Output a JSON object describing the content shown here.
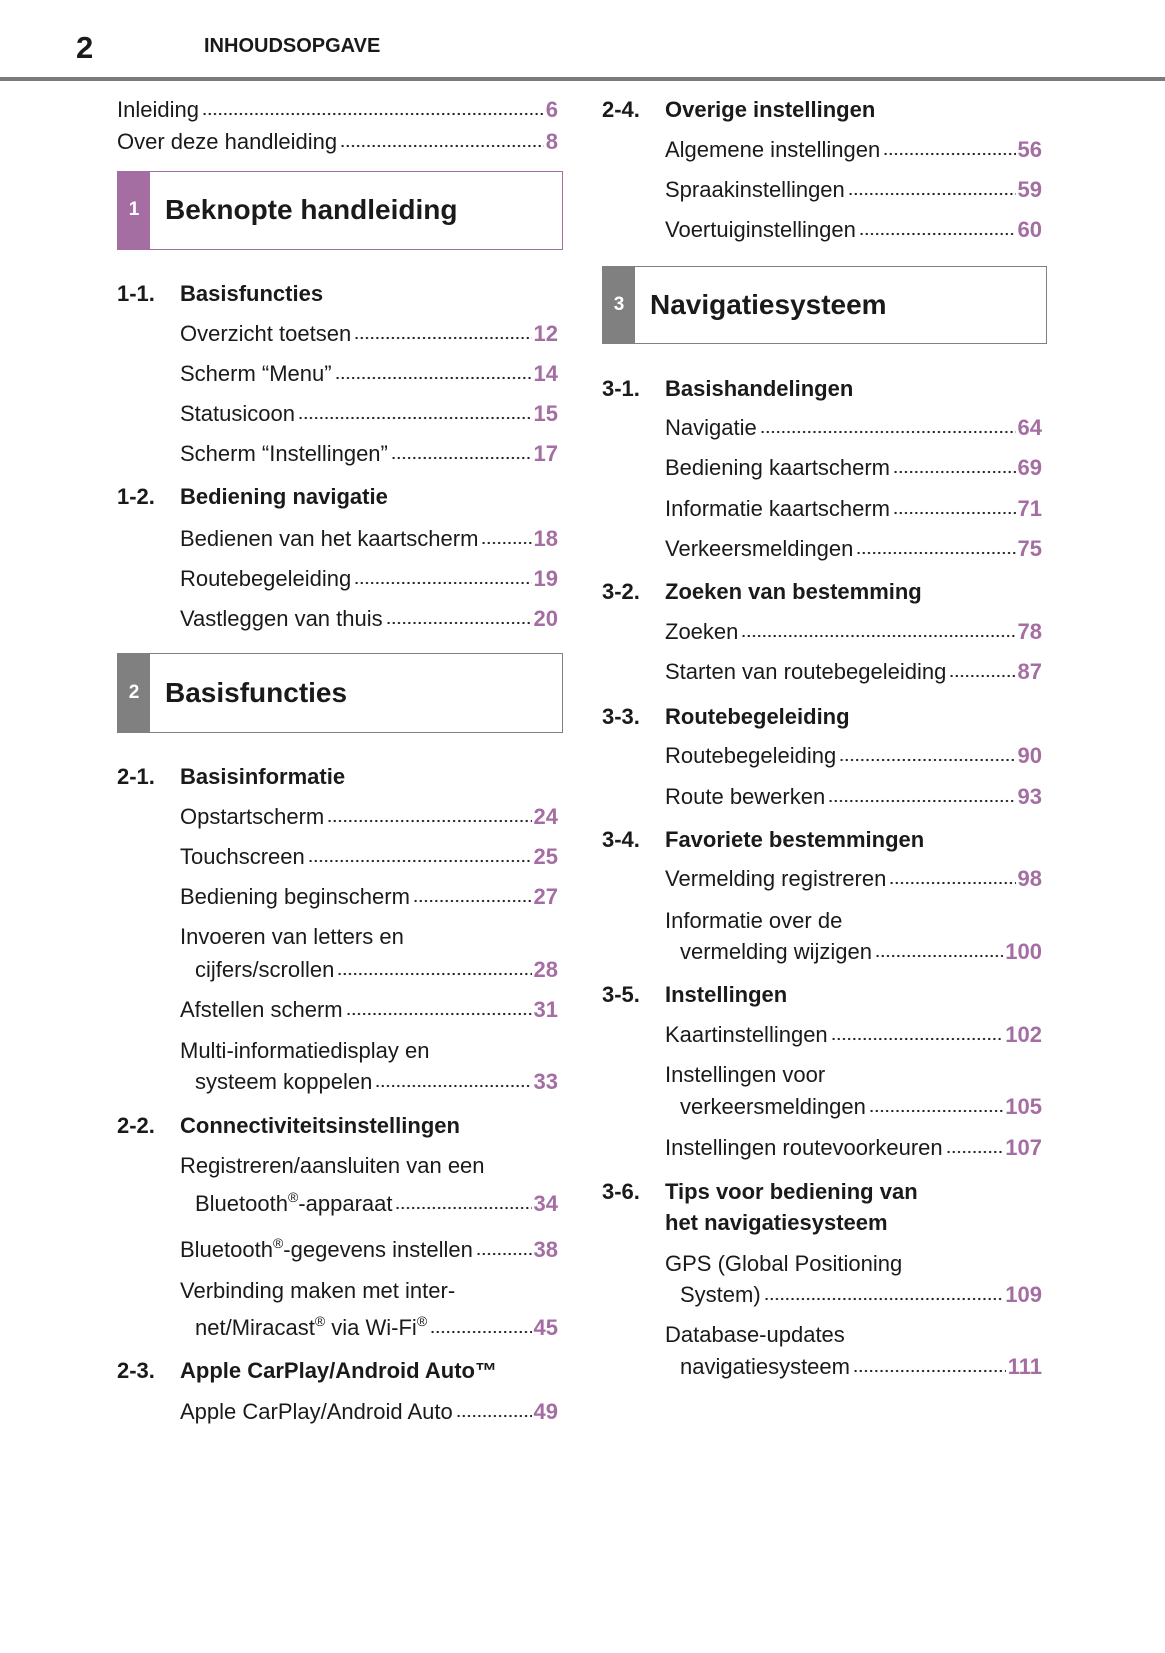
{
  "header": {
    "page_number": "2",
    "title": "INHOUDSOPGAVE"
  },
  "colors": {
    "accent": "#a46ea3",
    "chapter1": "#a46ea3",
    "chapter_gray": "#808080"
  },
  "left": [
    {
      "type": "item",
      "lines": [
        "Inleiding"
      ],
      "page": "6",
      "flush": true
    },
    {
      "type": "item",
      "lines": [
        "Over deze handleiding"
      ],
      "page": "8",
      "flush": true
    },
    {
      "type": "chapter",
      "number": "1",
      "title": "Beknopte handleiding",
      "color": "#a46ea3"
    },
    {
      "type": "section",
      "number": "1-1.",
      "lines": [
        "Basisfuncties"
      ]
    },
    {
      "type": "item",
      "lines": [
        "Overzicht toetsen"
      ],
      "page": "12"
    },
    {
      "type": "item",
      "lines": [
        "Scherm “Menu”"
      ],
      "page": "14"
    },
    {
      "type": "item",
      "lines": [
        "Statusicoon"
      ],
      "page": "15"
    },
    {
      "type": "item",
      "lines": [
        "Scherm “Instellingen”"
      ],
      "page": "17"
    },
    {
      "type": "section",
      "number": "1-2.",
      "lines": [
        "Bediening navigatie"
      ]
    },
    {
      "type": "item",
      "lines": [
        "Bedienen van het kaartscherm"
      ],
      "page": "18"
    },
    {
      "type": "item",
      "lines": [
        "Routebegeleiding"
      ],
      "page": "19"
    },
    {
      "type": "item",
      "lines": [
        "Vastleggen van thuis"
      ],
      "page": "20"
    },
    {
      "type": "chapter",
      "number": "2",
      "title": "Basisfuncties",
      "color": "#808080"
    },
    {
      "type": "section",
      "number": "2-1.",
      "lines": [
        "Basisinformatie"
      ]
    },
    {
      "type": "item",
      "lines": [
        "Opstartscherm"
      ],
      "page": "24"
    },
    {
      "type": "item",
      "lines": [
        "Touchscreen"
      ],
      "page": "25"
    },
    {
      "type": "item",
      "lines": [
        "Bediening beginscherm"
      ],
      "page": "27"
    },
    {
      "type": "item",
      "lines": [
        "Invoeren van letters en",
        "cijfers/scrollen"
      ],
      "page": "28"
    },
    {
      "type": "item",
      "lines": [
        "Afstellen scherm"
      ],
      "page": "31"
    },
    {
      "type": "item",
      "lines": [
        "Multi-informatiedisplay en",
        "systeem koppelen"
      ],
      "page": "33"
    },
    {
      "type": "section",
      "number": "2-2.",
      "lines": [
        "Connectiviteitsinstellingen"
      ]
    },
    {
      "type": "item",
      "lines": [
        "Registreren/aansluiten van een",
        "Bluetooth®-apparaat"
      ],
      "page": "34"
    },
    {
      "type": "item",
      "lines": [
        "Bluetooth®-gegevens instellen"
      ],
      "page": "38"
    },
    {
      "type": "item",
      "lines": [
        "Verbinding maken met inter-",
        "net/Miracast® via Wi-Fi®"
      ],
      "page": "45"
    },
    {
      "type": "section",
      "number": "2-3.",
      "lines": [
        "Apple CarPlay/Android Auto™"
      ]
    },
    {
      "type": "item",
      "lines": [
        "Apple CarPlay/Android Auto"
      ],
      "page": "49"
    }
  ],
  "right": [
    {
      "type": "section",
      "number": "2-4.",
      "lines": [
        "Overige instellingen"
      ]
    },
    {
      "type": "item",
      "lines": [
        "Algemene instellingen"
      ],
      "page": "56"
    },
    {
      "type": "item",
      "lines": [
        "Spraakinstellingen"
      ],
      "page": "59"
    },
    {
      "type": "item",
      "lines": [
        "Voertuiginstellingen"
      ],
      "page": "60"
    },
    {
      "type": "chapter",
      "number": "3",
      "title": "Navigatiesysteem",
      "color": "#808080"
    },
    {
      "type": "section",
      "number": "3-1.",
      "lines": [
        "Basishandelingen"
      ]
    },
    {
      "type": "item",
      "lines": [
        "Navigatie"
      ],
      "page": "64"
    },
    {
      "type": "item",
      "lines": [
        "Bediening kaartscherm"
      ],
      "page": "69"
    },
    {
      "type": "item",
      "lines": [
        "Informatie kaartscherm"
      ],
      "page": "71"
    },
    {
      "type": "item",
      "lines": [
        "Verkeersmeldingen"
      ],
      "page": "75"
    },
    {
      "type": "section",
      "number": "3-2.",
      "lines": [
        "Zoeken van bestemming"
      ]
    },
    {
      "type": "item",
      "lines": [
        "Zoeken"
      ],
      "page": "78"
    },
    {
      "type": "item",
      "lines": [
        "Starten van routebegeleiding"
      ],
      "page": "87"
    },
    {
      "type": "section",
      "number": "3-3.",
      "lines": [
        "Routebegeleiding"
      ]
    },
    {
      "type": "item",
      "lines": [
        "Routebegeleiding"
      ],
      "page": "90"
    },
    {
      "type": "item",
      "lines": [
        "Route bewerken"
      ],
      "page": "93"
    },
    {
      "type": "section",
      "number": "3-4.",
      "lines": [
        "Favoriete bestemmingen"
      ]
    },
    {
      "type": "item",
      "lines": [
        "Vermelding registreren"
      ],
      "page": "98"
    },
    {
      "type": "item",
      "lines": [
        "Informatie over de",
        "vermelding wijzigen"
      ],
      "page": "100"
    },
    {
      "type": "section",
      "number": "3-5.",
      "lines": [
        "Instellingen"
      ]
    },
    {
      "type": "item",
      "lines": [
        "Kaartinstellingen"
      ],
      "page": "102"
    },
    {
      "type": "item",
      "lines": [
        "Instellingen voor",
        "verkeersmeldingen"
      ],
      "page": "105"
    },
    {
      "type": "item",
      "lines": [
        "Instellingen routevoorkeuren"
      ],
      "page": "107"
    },
    {
      "type": "section",
      "number": "3-6.",
      "lines": [
        "Tips voor bediening van",
        "het navigatiesysteem"
      ]
    },
    {
      "type": "item",
      "lines": [
        "GPS (Global Positioning",
        "System)"
      ],
      "page": "109"
    },
    {
      "type": "item",
      "lines": [
        "Database-updates",
        "navigatiesysteem"
      ],
      "page": "111"
    }
  ]
}
